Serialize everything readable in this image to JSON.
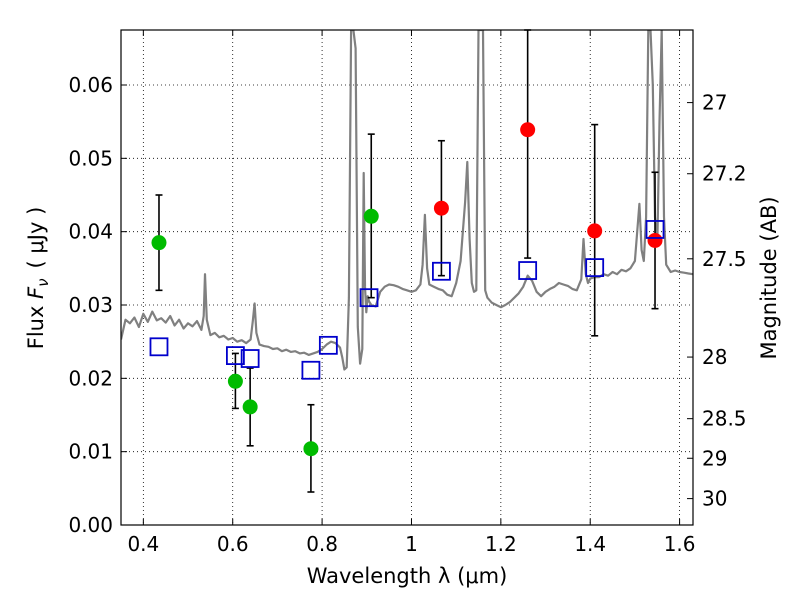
{
  "chart_data": {
    "type": "scatter",
    "xlabel": "Wavelength  λ (μm)",
    "ylabel": "Flux  F_ν  ( μJy )",
    "ylabel_parts": {
      "prefix": "Flux ",
      "symbol": "F",
      "subscript": "ν",
      "unit": "( μJy )"
    },
    "y2label": "Magnitude (AB)",
    "xlim": [
      0.35,
      1.63
    ],
    "ylim": [
      0.0,
      0.0675
    ],
    "grid": true,
    "x_ticks": [
      0.4,
      0.6,
      0.8,
      1.0,
      1.2,
      1.4,
      1.6
    ],
    "x_tick_labels": [
      "0.4",
      "0.6",
      "0.8",
      "1",
      "1.2",
      "1.4",
      "1.6"
    ],
    "y_ticks": [
      0.0,
      0.01,
      0.02,
      0.03,
      0.04,
      0.05,
      0.06
    ],
    "y_tick_labels": [
      "0.00",
      "0.01",
      "0.02",
      "0.03",
      "0.04",
      "0.05",
      "0.06"
    ],
    "y2_ticks": [
      {
        "label": "27",
        "flux": 0.0576
      },
      {
        "label": "27.2",
        "flux": 0.0479
      },
      {
        "label": "27.5",
        "flux": 0.0363
      },
      {
        "label": "28",
        "flux": 0.0229
      },
      {
        "label": "28.5",
        "flux": 0.0145
      },
      {
        "label": "29",
        "flux": 0.0091
      },
      {
        "label": "30",
        "flux": 0.0036
      }
    ],
    "series": [
      {
        "marker": "circle",
        "color": "#00bb00",
        "points": [
          {
            "x": 0.435,
            "y": 0.0385,
            "ylo": 0.032,
            "yhi": 0.045
          },
          {
            "x": 0.606,
            "y": 0.0196,
            "ylo": 0.0159,
            "yhi": 0.0234
          },
          {
            "x": 0.639,
            "y": 0.0161,
            "ylo": 0.0108,
            "yhi": 0.0214
          },
          {
            "x": 0.775,
            "y": 0.0104,
            "ylo": 0.0045,
            "yhi": 0.0164
          },
          {
            "x": 0.91,
            "y": 0.0421,
            "ylo": 0.031,
            "yhi": 0.0533
          }
        ]
      },
      {
        "marker": "circle",
        "color": "#ff0000",
        "points": [
          {
            "x": 1.067,
            "y": 0.0432,
            "ylo": 0.034,
            "yhi": 0.0524
          },
          {
            "x": 1.26,
            "y": 0.0539,
            "ylo": 0.0364,
            "yhi": 0.0675
          },
          {
            "x": 1.41,
            "y": 0.0401,
            "ylo": 0.0258,
            "yhi": 0.0546
          },
          {
            "x": 1.545,
            "y": 0.0388,
            "ylo": 0.0295,
            "yhi": 0.0481
          }
        ]
      },
      {
        "marker": "open-square",
        "color": "#0000cc",
        "points": [
          {
            "x": 0.435,
            "y": 0.0243
          },
          {
            "x": 0.606,
            "y": 0.0231
          },
          {
            "x": 0.639,
            "y": 0.0227
          },
          {
            "x": 0.775,
            "y": 0.0211
          },
          {
            "x": 0.814,
            "y": 0.0245
          },
          {
            "x": 0.905,
            "y": 0.031
          },
          {
            "x": 1.067,
            "y": 0.0346
          },
          {
            "x": 1.26,
            "y": 0.0347
          },
          {
            "x": 1.41,
            "y": 0.0351
          },
          {
            "x": 1.545,
            "y": 0.0403
          }
        ]
      },
      {
        "type": "line",
        "color": "#808080",
        "x": [
          0.35,
          0.36,
          0.37,
          0.38,
          0.39,
          0.4,
          0.41,
          0.42,
          0.43,
          0.44,
          0.45,
          0.46,
          0.47,
          0.48,
          0.49,
          0.5,
          0.51,
          0.52,
          0.53,
          0.535,
          0.538,
          0.542,
          0.55,
          0.56,
          0.57,
          0.58,
          0.59,
          0.6,
          0.61,
          0.62,
          0.63,
          0.64,
          0.645,
          0.649,
          0.653,
          0.66,
          0.67,
          0.68,
          0.69,
          0.7,
          0.71,
          0.72,
          0.73,
          0.74,
          0.75,
          0.76,
          0.77,
          0.78,
          0.79,
          0.8,
          0.81,
          0.82,
          0.83,
          0.84,
          0.845,
          0.85,
          0.855,
          0.86,
          0.865,
          0.87,
          0.875,
          0.88,
          0.885,
          0.89,
          0.893,
          0.896,
          0.899,
          0.902,
          0.905,
          0.91,
          0.92,
          0.93,
          0.94,
          0.95,
          0.96,
          0.97,
          0.98,
          0.99,
          1.0,
          1.01,
          1.02,
          1.025,
          1.03,
          1.035,
          1.04,
          1.05,
          1.06,
          1.07,
          1.08,
          1.09,
          1.1,
          1.11,
          1.12,
          1.125,
          1.13,
          1.135,
          1.14,
          1.145,
          1.15,
          1.155,
          1.16,
          1.165,
          1.17,
          1.18,
          1.19,
          1.2,
          1.21,
          1.22,
          1.23,
          1.24,
          1.25,
          1.26,
          1.27,
          1.28,
          1.29,
          1.3,
          1.31,
          1.32,
          1.33,
          1.34,
          1.35,
          1.36,
          1.37,
          1.38,
          1.385,
          1.39,
          1.395,
          1.4,
          1.41,
          1.42,
          1.43,
          1.44,
          1.45,
          1.46,
          1.47,
          1.48,
          1.49,
          1.5,
          1.51,
          1.515,
          1.52,
          1.525,
          1.53,
          1.535,
          1.54,
          1.545,
          1.55,
          1.555,
          1.56,
          1.565,
          1.57,
          1.58,
          1.59,
          1.6,
          1.61,
          1.62,
          1.63
        ],
        "y": [
          0.0253,
          0.028,
          0.0275,
          0.0283,
          0.027,
          0.0288,
          0.0277,
          0.0291,
          0.0279,
          0.0282,
          0.0276,
          0.0285,
          0.0272,
          0.028,
          0.0268,
          0.0275,
          0.0271,
          0.0278,
          0.0266,
          0.0285,
          0.0342,
          0.028,
          0.0259,
          0.0262,
          0.0256,
          0.0258,
          0.0253,
          0.0255,
          0.025,
          0.0252,
          0.0248,
          0.0253,
          0.0278,
          0.0302,
          0.0262,
          0.0246,
          0.0244,
          0.0243,
          0.024,
          0.0241,
          0.0237,
          0.0239,
          0.0236,
          0.0237,
          0.0234,
          0.0235,
          0.0232,
          0.0234,
          0.0236,
          0.024,
          0.0246,
          0.025,
          0.0248,
          0.0242,
          0.0229,
          0.0212,
          0.0215,
          0.031,
          0.0675,
          0.0675,
          0.065,
          0.027,
          0.022,
          0.024,
          0.048,
          0.0325,
          0.029,
          0.0312,
          0.0305,
          0.03,
          0.0298,
          0.0318,
          0.0325,
          0.0328,
          0.0327,
          0.0325,
          0.0322,
          0.032,
          0.0318,
          0.032,
          0.0328,
          0.0355,
          0.0423,
          0.035,
          0.0328,
          0.0325,
          0.0322,
          0.032,
          0.0314,
          0.0312,
          0.033,
          0.036,
          0.044,
          0.0495,
          0.039,
          0.033,
          0.0318,
          0.032,
          0.0675,
          0.0675,
          0.0675,
          0.032,
          0.031,
          0.0303,
          0.03,
          0.0297,
          0.03,
          0.0304,
          0.031,
          0.0316,
          0.0325,
          0.034,
          0.0333,
          0.0318,
          0.0312,
          0.0318,
          0.0322,
          0.0325,
          0.033,
          0.0328,
          0.0326,
          0.0322,
          0.032,
          0.0335,
          0.039,
          0.0342,
          0.033,
          0.0336,
          0.0338,
          0.0338,
          0.0342,
          0.034,
          0.0345,
          0.0342,
          0.0348,
          0.0346,
          0.035,
          0.036,
          0.0438,
          0.0375,
          0.036,
          0.042,
          0.0675,
          0.0675,
          0.06,
          0.042,
          0.038,
          0.055,
          0.0675,
          0.042,
          0.0355,
          0.0345,
          0.0347,
          0.0345,
          0.0344,
          0.0343,
          0.0342
        ]
      }
    ]
  }
}
